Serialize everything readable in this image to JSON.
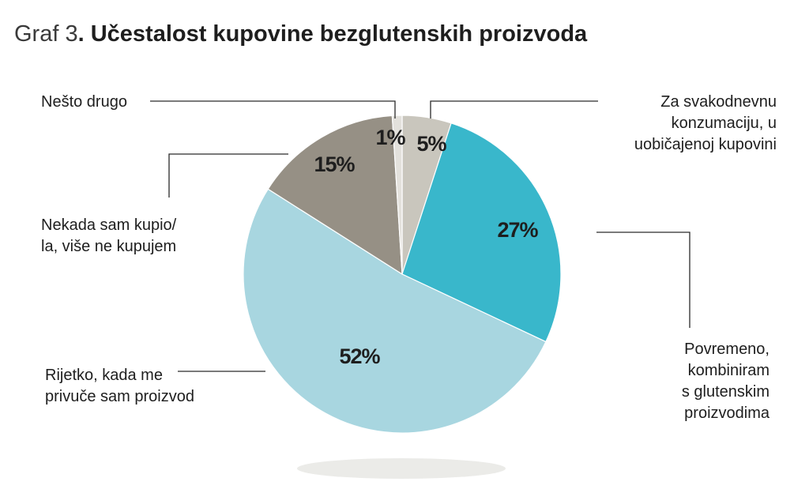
{
  "chart_data": {
    "type": "pie",
    "title_prefix": "Graf 3",
    "title": ". Učestalost kupovine bezglutenskih proizvoda",
    "slices": [
      {
        "label": "Za svakodnevnu konzumaciju, u uobičajenoj kupovini",
        "label_lines": [
          "Za svakodnevnu",
          "konzumaciju, u",
          "uobičajenoj kupovini"
        ],
        "value": 5,
        "value_label": "5%",
        "color": "#c9c6bd"
      },
      {
        "label": "Povremeno, kombiniram s glutenskim proizvodima",
        "label_lines": [
          "Povremeno,",
          "kombiniram",
          "s glutenskim",
          "proizvodima"
        ],
        "value": 27,
        "value_label": "27%",
        "color": "#39b7cb"
      },
      {
        "label": "Rijetko, kada me privuče sam proizvod",
        "label_lines": [
          "Rijetko, kada me",
          "privuče sam proizvod"
        ],
        "value": 52,
        "value_label": "52%",
        "color": "#a8d6e0"
      },
      {
        "label": "Nekada sam kupio/la, više ne kupujem",
        "label_lines": [
          "Nekada sam kupio/",
          "la, više ne kupujem"
        ],
        "value": 15,
        "value_label": "15%",
        "color": "#969085"
      },
      {
        "label": "Nešto drugo",
        "label_lines": [
          "Nešto drugo"
        ],
        "value": 1,
        "value_label": "1%",
        "color": "#e3e1dc"
      }
    ]
  }
}
